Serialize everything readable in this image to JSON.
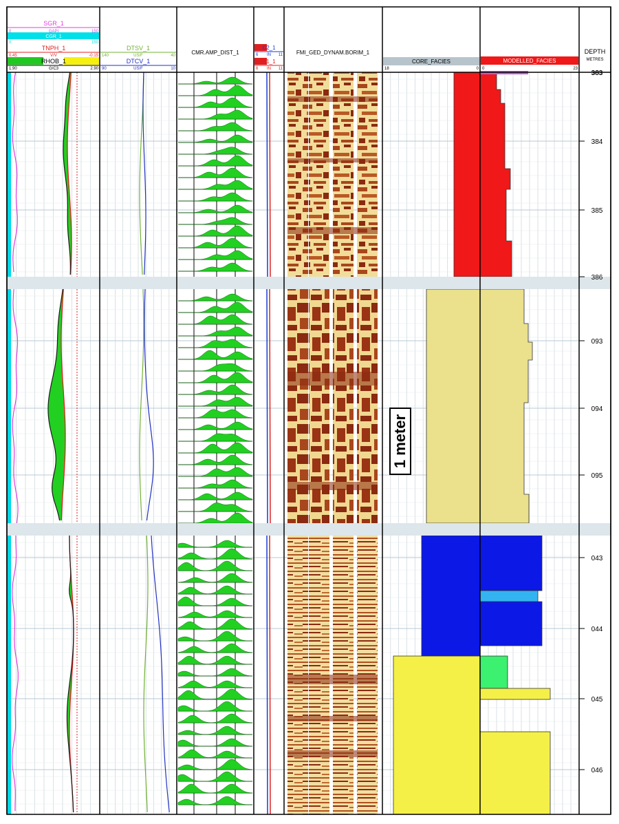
{
  "headers": {
    "track1": {
      "sgr": {
        "name": "SGR_1",
        "min": "0",
        "unit": "GAPI",
        "max": "150",
        "color": "#e040e0"
      },
      "cgr": {
        "name": "CGR_1",
        "min": "0",
        "unit": "GAPI",
        "max": "150",
        "color": "#00e0e8"
      },
      "tnph": {
        "name": "TNPH_1",
        "min": "0.45",
        "unit": "V/V",
        "max": "-0.15",
        "color": "#e02020"
      },
      "rhob": {
        "name": "RHOB_1",
        "min": "1.90",
        "unit": "G/C3",
        "max": "2.90",
        "color": "#00c000"
      }
    },
    "track2": {
      "dtsv": {
        "name": "DTSV_1",
        "min": "140",
        "unit": "US/F",
        "max": "40",
        "color": "#70b030"
      },
      "dtcv": {
        "name": "DTCV_1",
        "min": "90",
        "unit": "US/F",
        "max": "10",
        "color": "#2030c0"
      }
    },
    "track3": {
      "name": "CMR.AMP_DIST_1"
    },
    "track4": {
      "c2": {
        "name": "C2_1",
        "min": "6",
        "unit": "IN",
        "max": "11",
        "color": "#1a3ad0"
      },
      "c1": {
        "name": "C1_1",
        "min": "6",
        "unit": "IN",
        "max": "11",
        "color": "#e02020"
      }
    },
    "track5": {
      "name": "FMI_GED_DYNAM.BORIM_1"
    },
    "track6": {
      "name": "CORE_FACIES",
      "min": "18",
      "max": "0"
    },
    "track7": {
      "name": "MODELLED_FACIES",
      "min": "0",
      "max": "23"
    },
    "depth": {
      "title": "DEPTH",
      "unit": "METRES"
    }
  },
  "depth_labels": {
    "seg1": [
      "383",
      "384",
      "385",
      "386"
    ],
    "seg2": [
      "093",
      "094",
      "095"
    ],
    "seg3": [
      "043",
      "044",
      "045",
      "046"
    ]
  },
  "scale_label": "1 meter",
  "colors": {
    "facies_red": "#f01818",
    "facies_khaki": "#ebe08c",
    "facies_blue": "#0c18e6",
    "facies_lightblue": "#33b4f0",
    "facies_green": "#3cf070",
    "facies_yellow": "#f4f048",
    "facies_purple": "#c058e0",
    "fmi_dark": "#8a2a10",
    "fmi_light": "#f2dc9a",
    "fill_green": "#22d022",
    "band_gray": "#dde6ea"
  }
}
